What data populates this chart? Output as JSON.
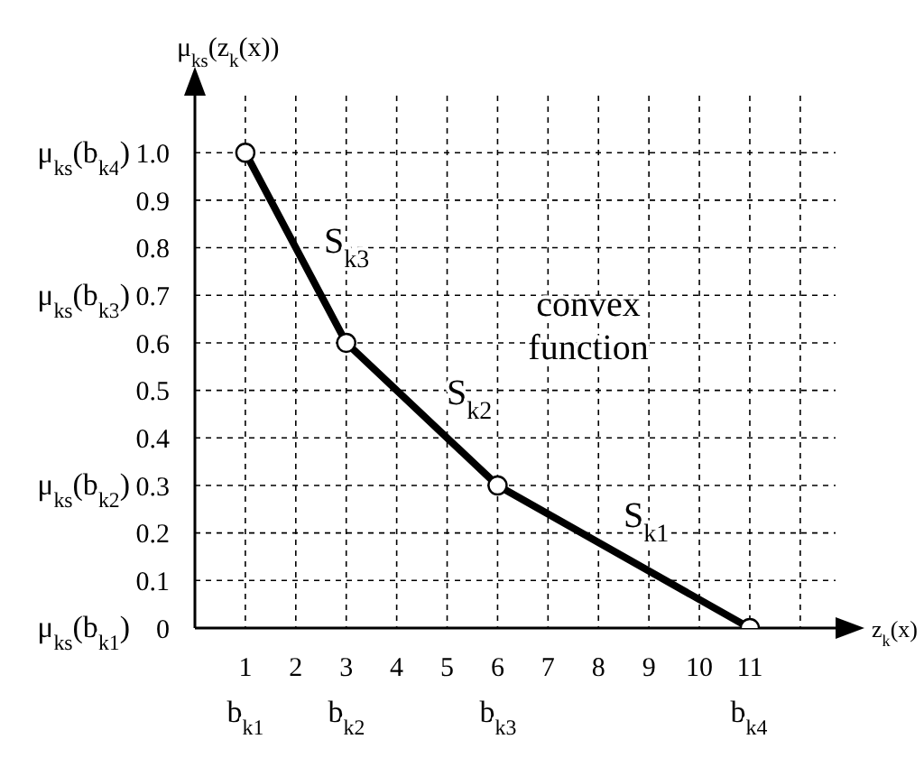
{
  "chart_data": {
    "type": "line",
    "xlabel": "z$_{k}$(x)",
    "ylabel": "μ$_{ks}$(z$_{k}$(x))",
    "x": [
      1,
      3,
      6,
      11
    ],
    "series": [
      {
        "color": "#000000",
        "values": [
          1.0,
          0.6,
          0.3,
          0
        ]
      }
    ],
    "marker": "circle",
    "line_style": "solid",
    "grid": true,
    "legend": false,
    "xlim": [
      0,
      12.7
    ],
    "ylim": [
      0,
      1.12
    ],
    "xticks": [
      1,
      2,
      3,
      4,
      5,
      6,
      7,
      8,
      9,
      10,
      11,
      {
        "value": 12,
        "label": null
      }
    ],
    "yticks": [
      0,
      0.1,
      0.2,
      0.3,
      0.4,
      0.5,
      0.6,
      0.7,
      0.8,
      0.9,
      {
        "value": 1.0,
        "label": "1.0"
      }
    ],
    "annotations": [
      "μ$_{ks}$(b$_{k4}$)",
      "μ$_{ks}$(b$_{k3}$)",
      "μ$_{ks}$(b$_{k2}$)",
      "μ$_{ks}$(b$_{k1}$)",
      "b$_{k1}$",
      "b$_{k2}$",
      "b$_{k3}$",
      "b$_{k4}$",
      "S$_{k3}$",
      "S$_{k2}$",
      "S$_{k1}$",
      "convex\nfunction"
    ]
  }
}
